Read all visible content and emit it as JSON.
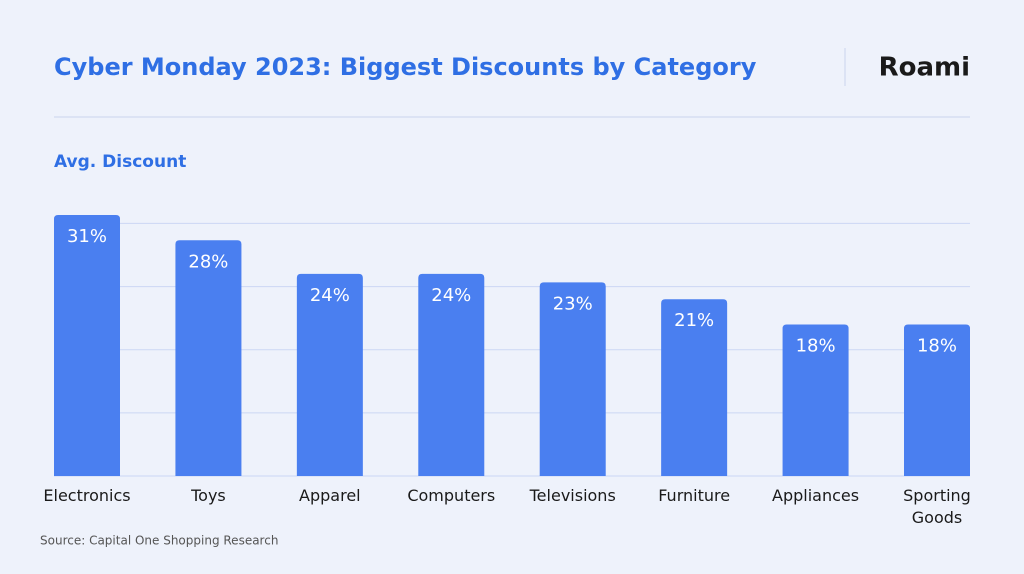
{
  "brand": "Roami",
  "source": "Source: Capital One Shopping Research",
  "chart_data": {
    "type": "bar",
    "title": "Cyber Monday 2023: Biggest Discounts by Category",
    "y_label": "Avg. Discount",
    "categories": [
      "Electronics",
      "Toys",
      "Apparel",
      "Computers",
      "Televisions",
      "Furniture",
      "Appliances",
      "Sporting Goods"
    ],
    "values": [
      31,
      28,
      24,
      24,
      23,
      21,
      18,
      18
    ],
    "value_labels": [
      "31%",
      "28%",
      "24%",
      "24%",
      "23%",
      "21%",
      "18%",
      "18%"
    ],
    "color": "#4a7ff0",
    "ylim": [
      0,
      31
    ],
    "yticks": [
      0,
      7.5,
      15,
      22.5,
      30
    ],
    "grid": true
  }
}
